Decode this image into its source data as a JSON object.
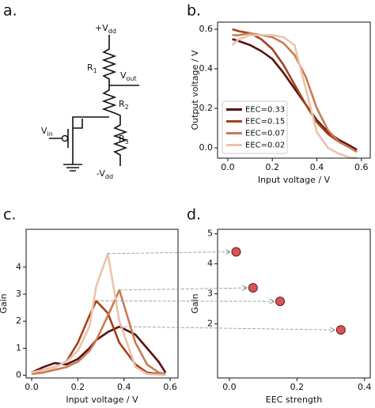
{
  "circuit": {
    "panel_label": "a.",
    "labels": [
      {
        "text": "+V",
        "sub": "dd"
      },
      {
        "text": "R",
        "sub": "1"
      },
      {
        "text": "V",
        "sub": "out"
      },
      {
        "text": "R",
        "sub": "2"
      },
      {
        "text": "V",
        "sub": "in"
      },
      {
        "text": "R",
        "sub": "3"
      },
      {
        "text": "-V",
        "sub": "dd"
      }
    ]
  },
  "chart_data": [
    {
      "type": "line",
      "panel_label": "b.",
      "xlabel": "Input voltage / V",
      "ylabel": "Output voltage / V",
      "x": [
        0.02,
        0.05,
        0.1,
        0.15,
        0.2,
        0.25,
        0.3,
        0.35,
        0.4,
        0.45,
        0.5,
        0.55,
        0.58
      ],
      "series": [
        {
          "name": "EEC=0.33",
          "color": "#5c1010",
          "values": [
            0.55,
            0.54,
            0.52,
            0.49,
            0.45,
            0.38,
            0.3,
            0.22,
            0.14,
            0.08,
            0.04,
            0.01,
            -0.01
          ]
        },
        {
          "name": "EEC=0.15",
          "color": "#a3421c",
          "values": [
            0.6,
            0.59,
            0.58,
            0.55,
            0.5,
            0.42,
            0.32,
            0.22,
            0.13,
            0.07,
            0.03,
            0.0,
            -0.02
          ]
        },
        {
          "name": "EEC=0.07",
          "color": "#c97b52",
          "values": [
            0.57,
            0.57,
            0.58,
            0.57,
            0.56,
            0.53,
            0.47,
            0.36,
            0.2,
            0.09,
            0.03,
            0.0,
            -0.02
          ]
        },
        {
          "name": "EEC=0.02",
          "color": "#ecc2ab",
          "values": [
            0.52,
            0.55,
            0.57,
            0.57,
            0.57,
            0.56,
            0.52,
            0.3,
            0.08,
            0.0,
            -0.03,
            -0.05,
            -0.05
          ]
        }
      ],
      "xlim": [
        -0.046,
        0.64
      ],
      "ylim": [
        -0.052,
        0.636
      ],
      "xticks": [
        {
          "value": 0,
          "label": "0.0"
        },
        {
          "value": 0.2,
          "label": "0.2"
        },
        {
          "value": 0.4,
          "label": "0.4"
        },
        {
          "value": 0.6,
          "label": "0.6"
        }
      ],
      "yticks": [
        {
          "value": 0,
          "label": "0.0"
        },
        {
          "value": 0.2,
          "label": "0.2"
        },
        {
          "value": 0.4,
          "label": "0.4"
        },
        {
          "value": 0.6,
          "label": "0.6"
        }
      ],
      "legend": "lower left"
    },
    {
      "type": "line",
      "panel_label": "c.",
      "xlabel": "Input voltage / V",
      "ylabel": "Gain",
      "x": [
        0,
        0.05,
        0.1,
        0.15,
        0.2,
        0.25,
        0.28,
        0.33,
        0.38,
        0.45,
        0.5,
        0.55,
        0.58
      ],
      "series": [
        {
          "color": "#5c1010",
          "values": [
            0.1,
            0.3,
            0.45,
            0.4,
            0.6,
            1.0,
            1.3,
            1.6,
            1.8,
            1.5,
            1.0,
            0.5,
            0.1
          ]
        },
        {
          "color": "#a3421c",
          "values": [
            0.1,
            0.2,
            0.3,
            0.5,
            1.2,
            2.2,
            2.75,
            2.3,
            1.2,
            0.4,
            0.1,
            0.05,
            0.02
          ]
        },
        {
          "color": "#c97b52",
          "values": [
            0.05,
            0.1,
            0.2,
            0.3,
            0.5,
            0.9,
            1.3,
            2.2,
            3.15,
            1.2,
            0.4,
            0.1,
            0.05
          ]
        },
        {
          "color": "#ecc2ab",
          "values": [
            0.1,
            0.2,
            0.3,
            0.5,
            0.9,
            1.8,
            3.3,
            4.5,
            2.0,
            0.3,
            0.05,
            0.02,
            0.0
          ]
        }
      ],
      "xlim": [
        -0.024,
        0.634
      ],
      "ylim": [
        -0.1,
        5.4
      ],
      "xticks": [
        {
          "value": 0,
          "label": "0.0"
        },
        {
          "value": 0.2,
          "label": "0.2"
        },
        {
          "value": 0.4,
          "label": "0.4"
        },
        {
          "value": 0.6,
          "label": "0.6"
        }
      ],
      "yticks": [
        0,
        1,
        2,
        3,
        4
      ]
    },
    {
      "type": "scatter",
      "panel_label": "d.",
      "xlabel": "EEC strength",
      "ylabel": "Gain",
      "x": [
        0.02,
        0.07,
        0.15,
        0.33
      ],
      "values": [
        4.4,
        3.2,
        2.75,
        1.8
      ],
      "color": "#d45656",
      "xlim": [
        -0.035,
        0.417
      ],
      "ylim": [
        0.2,
        5.15
      ],
      "xticks": [
        {
          "value": 0,
          "label": "0.0"
        },
        {
          "value": 0.2,
          "label": "0.2"
        },
        {
          "value": 0.4,
          "label": "0.4"
        }
      ],
      "yticks": [
        2,
        3,
        4,
        5
      ]
    }
  ]
}
